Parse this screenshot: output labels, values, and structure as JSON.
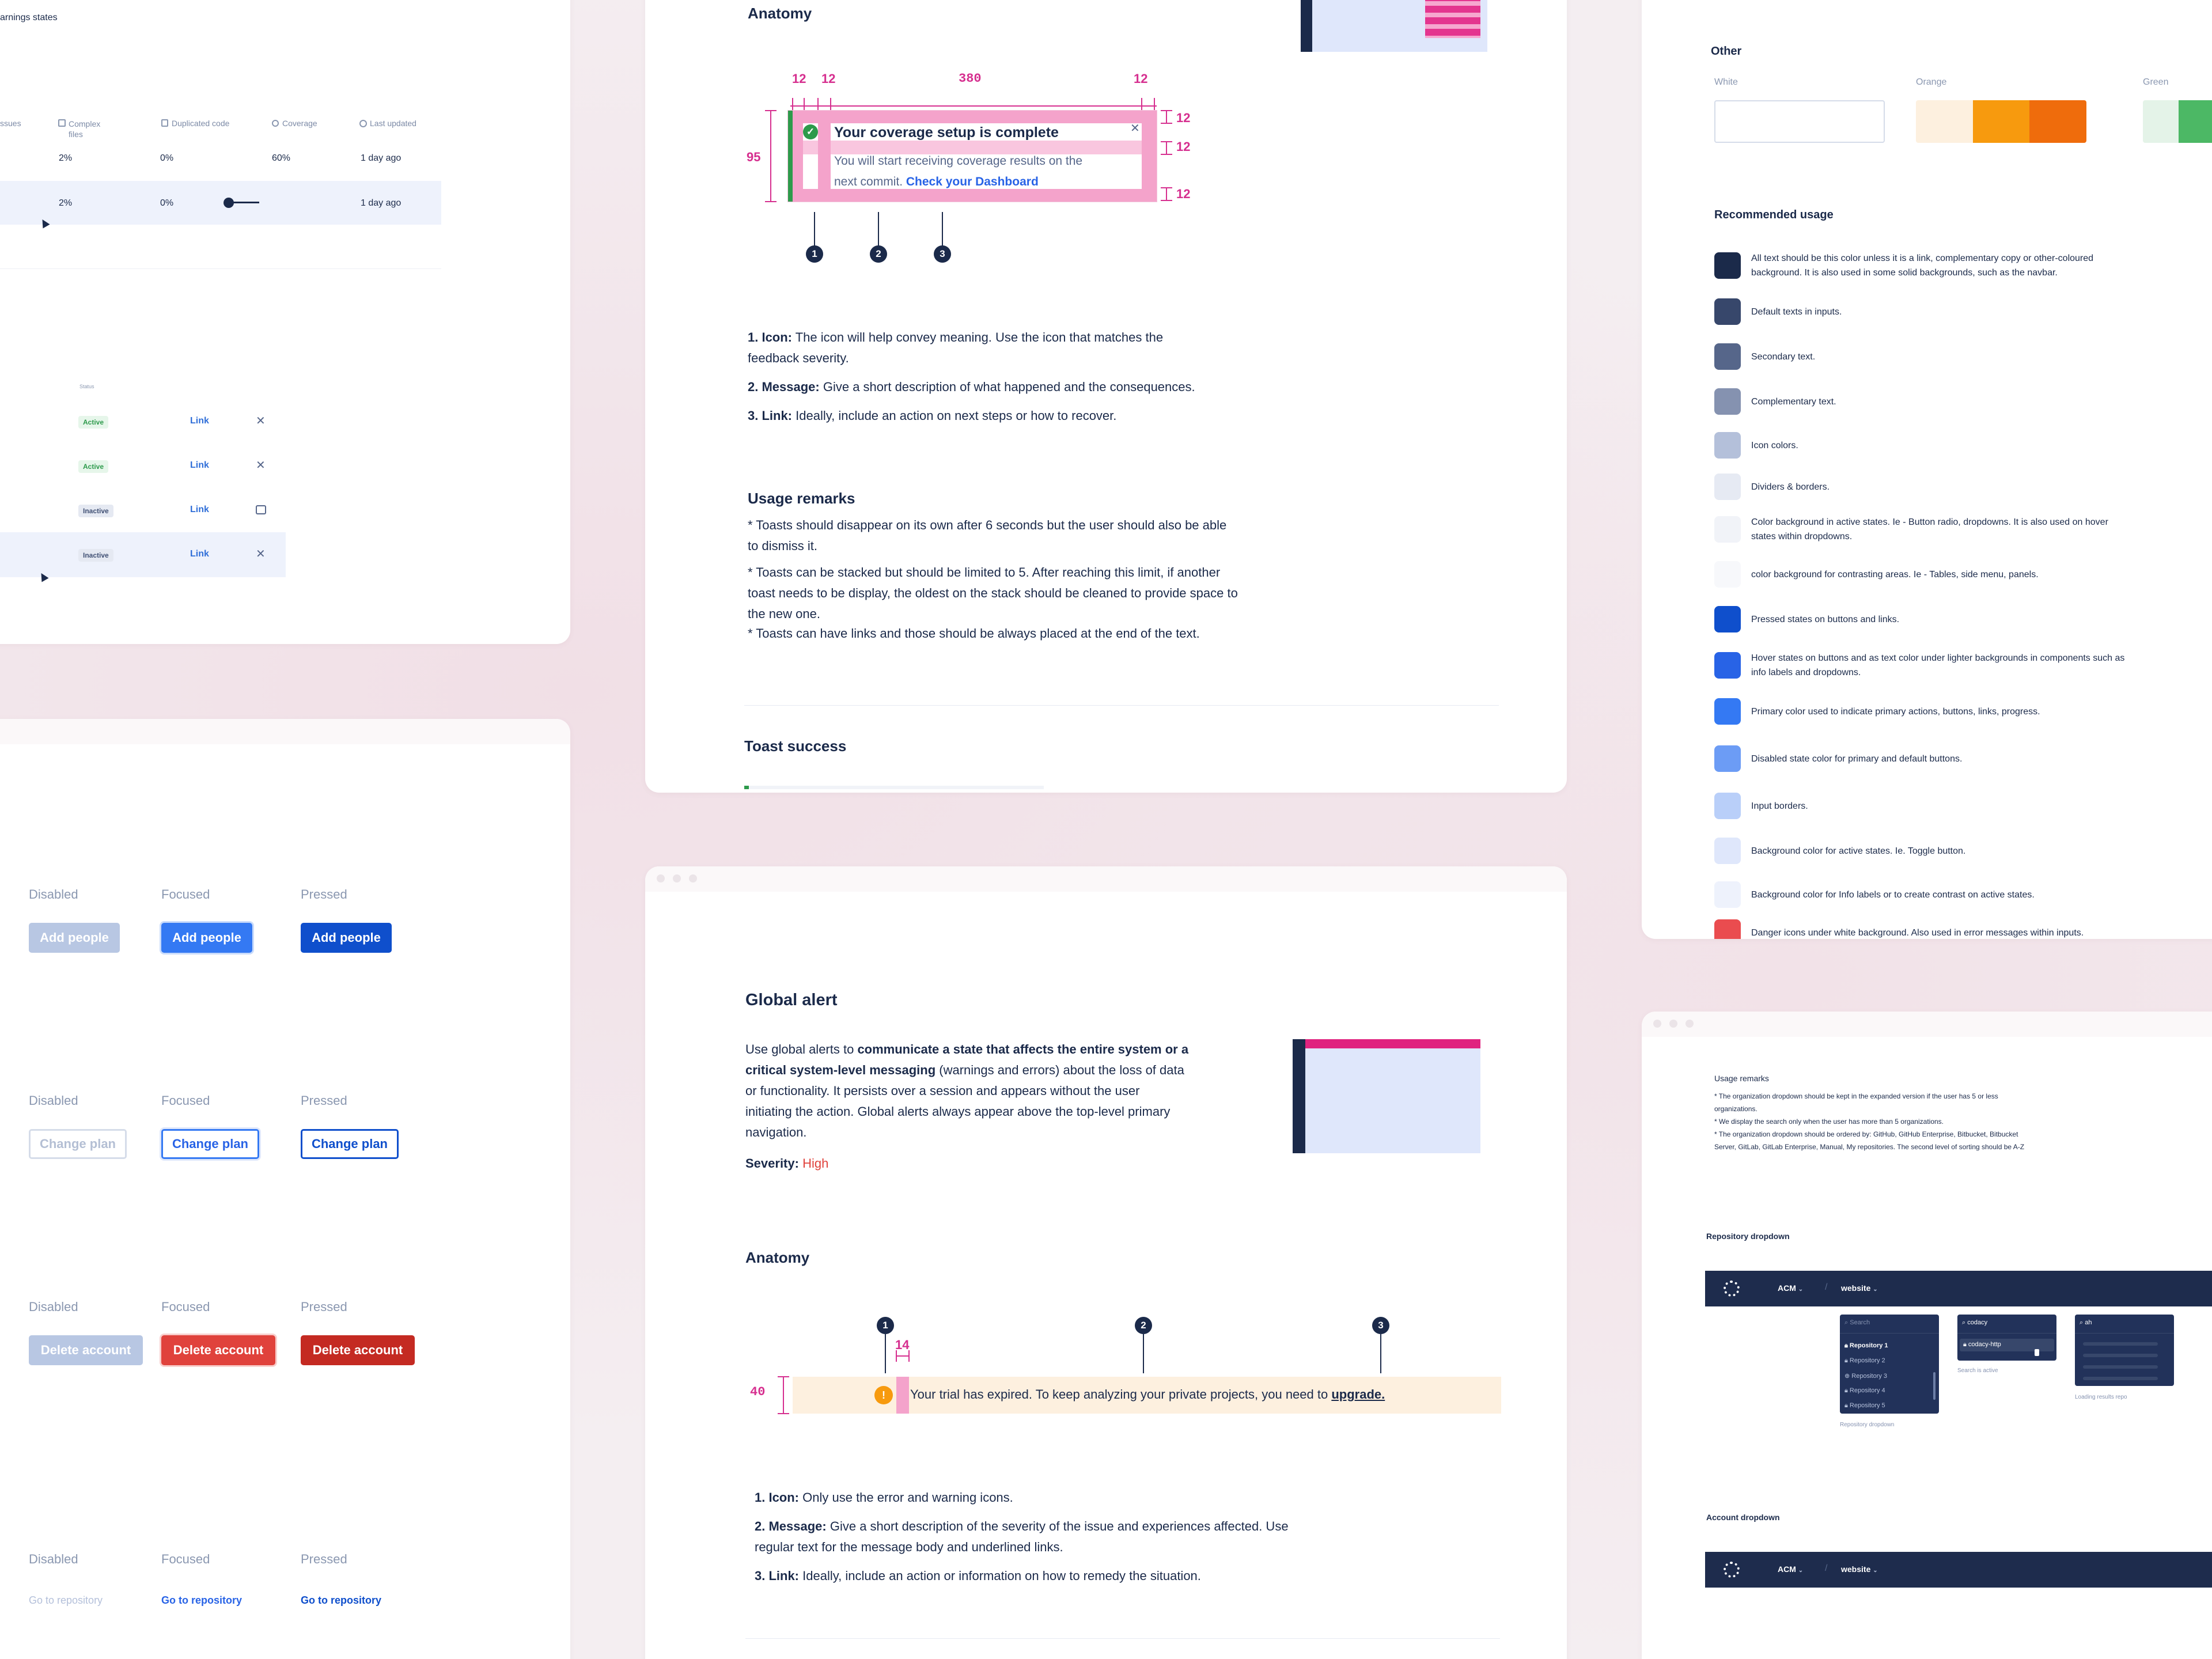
{
  "left_top": {
    "fragment_title": "arnings states",
    "columns": [
      "ssues",
      "Complex files",
      "Duplicated code",
      "Coverage",
      "Last updated"
    ],
    "rows": [
      {
        "complex": "2%",
        "dup": "0%",
        "coverage": "60%",
        "updated": "1 day ago"
      },
      {
        "complex": "2%",
        "dup": "0%",
        "coverage": "",
        "updated": "1 day ago"
      }
    ],
    "status_header": "Status",
    "status_rows": [
      {
        "badge": "Active",
        "link": "Link",
        "icon": "close-icon"
      },
      {
        "badge": "Active",
        "link": "Link",
        "icon": "close-icon"
      },
      {
        "badge": "Inactive",
        "link": "Link",
        "icon": "exit-icon"
      },
      {
        "badge": "Inactive",
        "link": "Link",
        "icon": "close-icon"
      }
    ]
  },
  "buttons_panel": {
    "rows": [
      {
        "labels": [
          "Disabled",
          "Focused",
          "Pressed"
        ],
        "button": "Add people"
      },
      {
        "labels": [
          "Disabled",
          "Focused",
          "Pressed"
        ],
        "button": "Change plan"
      },
      {
        "labels": [
          "Disabled",
          "Focused",
          "Pressed"
        ],
        "button": "Delete account"
      },
      {
        "labels": [
          "Disabled",
          "Focused",
          "Pressed"
        ],
        "button": "Go to repository"
      }
    ]
  },
  "toast_doc": {
    "anatomy_title": "Anatomy",
    "dims": {
      "a": "12",
      "b": "12",
      "c": "380",
      "d": "12",
      "height": "95",
      "r1": "12",
      "r2": "12",
      "r3": "12"
    },
    "toast_title": "Your coverage setup is complete",
    "toast_body_1": "You will start receiving coverage results on the",
    "toast_body_2": "next commit.",
    "toast_link": "Check your Dashboard",
    "markers": [
      "1",
      "2",
      "3"
    ],
    "items": [
      {
        "label": "1. Icon:",
        "text": "The icon will help convey meaning. Use the icon that matches the",
        "text2": "feedback severity."
      },
      {
        "label": "2. Message:",
        "text": "Give a short description of what happened and the consequences.",
        "text2": ""
      },
      {
        "label": "3. Link:",
        "text": "Ideally, include an action on next steps or how to recover.",
        "text2": ""
      }
    ],
    "usage_title": "Usage remarks",
    "usage": [
      [
        "* Toasts should disappear on its own after 6 seconds but the user should also be able",
        "to dismiss it."
      ],
      [
        "* Toasts can be stacked but should be limited to 5. After reaching this limit, if another",
        "toast needs to be display, the oldest on the stack should be cleaned to provide space to",
        "the new one."
      ],
      [
        "* Toasts can have links and those should be always placed at the end of the text."
      ]
    ],
    "next_title": "Toast success"
  },
  "global_alert": {
    "title": "Global alert",
    "desc_1a": "Use global alerts to ",
    "desc_1b": "communicate a state that affects the entire system or a",
    "desc_2a": "critical system-level messaging",
    "desc_2b": " (warnings and errors) about the loss of data",
    "desc_3": "or functionality. It persists over a session and appears without the user",
    "desc_4": "initiating the action. Global alerts always appear above the top-level primary",
    "desc_5": "navigation.",
    "severity_label": "Severity:",
    "severity_value": "High",
    "anatomy_title": "Anatomy",
    "dim_height": "40",
    "dim_gap": "14",
    "markers": [
      "1",
      "2",
      "3"
    ],
    "alert_text": "Your trial has expired. To keep analyzing your private projects, you need to ",
    "alert_link": "upgrade.",
    "items": [
      {
        "label": "1. Icon:",
        "text": "Only use the error and warning icons.",
        "text2": ""
      },
      {
        "label": "2. Message:",
        "text": "Give a short description of the severity of the issue and experiences affected. Use",
        "text2": "regular text for the message body and underlined links."
      },
      {
        "label": "3. Link:",
        "text": "Ideally, include an action or information on how to remedy the situation.",
        "text2": ""
      }
    ]
  },
  "colors_doc": {
    "other_title": "Other",
    "groups": [
      {
        "name": "White",
        "swatches": [
          "#ffffff"
        ]
      },
      {
        "name": "Orange",
        "swatches": [
          "#fdf0df",
          "#f79a0e",
          "#ef6c0c"
        ]
      },
      {
        "name": "Green",
        "swatches": [
          "#e4f3e8",
          "#4cb865"
        ]
      }
    ],
    "recommended_title": "Recommended usage",
    "usage": [
      {
        "color": "#1b2a4a",
        "text": "All text should be this color unless it is a link, complementary copy or other-coloured",
        "text2": "background. It is also used in some solid backgrounds, such as the navbar."
      },
      {
        "color": "#37476b",
        "text": "Default texts in inputs.",
        "text2": ""
      },
      {
        "color": "#56668a",
        "text": "Secondary text.",
        "text2": ""
      },
      {
        "color": "#8592b0",
        "text": "Complementary text.",
        "text2": ""
      },
      {
        "color": "#b4c0da",
        "text": "Icon colors.",
        "text2": ""
      },
      {
        "color": "#e6eaf3",
        "text": "Dividers & borders.",
        "text2": ""
      },
      {
        "color": "#f1f3f8",
        "text": "Color background in active states. Ie - Button radio, dropdowns. It is also used on hover",
        "text2": "states within dropdowns."
      },
      {
        "color": "#f7f8fb",
        "text": "color background for contrasting areas. Ie - Tables, side menu, panels.",
        "text2": ""
      },
      {
        "color": "#0f4fcc",
        "text": "Pressed states on buttons and links.",
        "text2": ""
      },
      {
        "color": "#2863e6",
        "text": "Hover states on buttons and as text color under lighter backgrounds in components such as",
        "text2": "info labels and dropdowns."
      },
      {
        "color": "#3479f3",
        "text": "Primary color used to indicate primary actions, buttons, links, progress.",
        "text2": ""
      },
      {
        "color": "#6c9cf5",
        "text": "Disabled state color for primary and default buttons.",
        "text2": ""
      },
      {
        "color": "#b9cff9",
        "text": "Input borders.",
        "text2": ""
      },
      {
        "color": "#dfe7fb",
        "text": "Background color for active states. Ie. Toggle button.",
        "text2": ""
      },
      {
        "color": "#eef2fc",
        "text": "Background color for Info labels or to create contrast on active states.",
        "text2": ""
      },
      {
        "color": "#ea4c4f",
        "text": "Danger icons under white background. Also used in error messages within inputs.",
        "text2": ""
      }
    ]
  },
  "dropdown_doc": {
    "usage_title": "Usage remarks",
    "remarks": [
      "* The organization dropdown should be kept in the expanded version if the user has 5 or less",
      "organizations.",
      "* We display the search only when the user has more than 5 organizations.",
      "* The organization dropdown should be ordered by: GitHub, GitHub Enterprise, Bitbucket, Bitbucket",
      "Server, GitLab, GitLab Enterprise, Manual, My repositories. The second level of sorting should be A-Z"
    ],
    "repo_title": "Repository dropdown",
    "nav_org": "ACM",
    "nav_repo": "website",
    "search_placeholder": "Search",
    "repos": [
      "Repository 1",
      "Repository 2",
      "Repository 3",
      "Repository 4",
      "Repository 5"
    ],
    "search_value": "codacy",
    "search_result": "codacy-http",
    "search_value_2": "ah",
    "caption_1": "Repository dropdown",
    "caption_2": "Search is active",
    "caption_3": "Loading results repo",
    "account_title": "Account dropdown",
    "nav_org_2": "ACM",
    "nav_repo_2": "website"
  }
}
